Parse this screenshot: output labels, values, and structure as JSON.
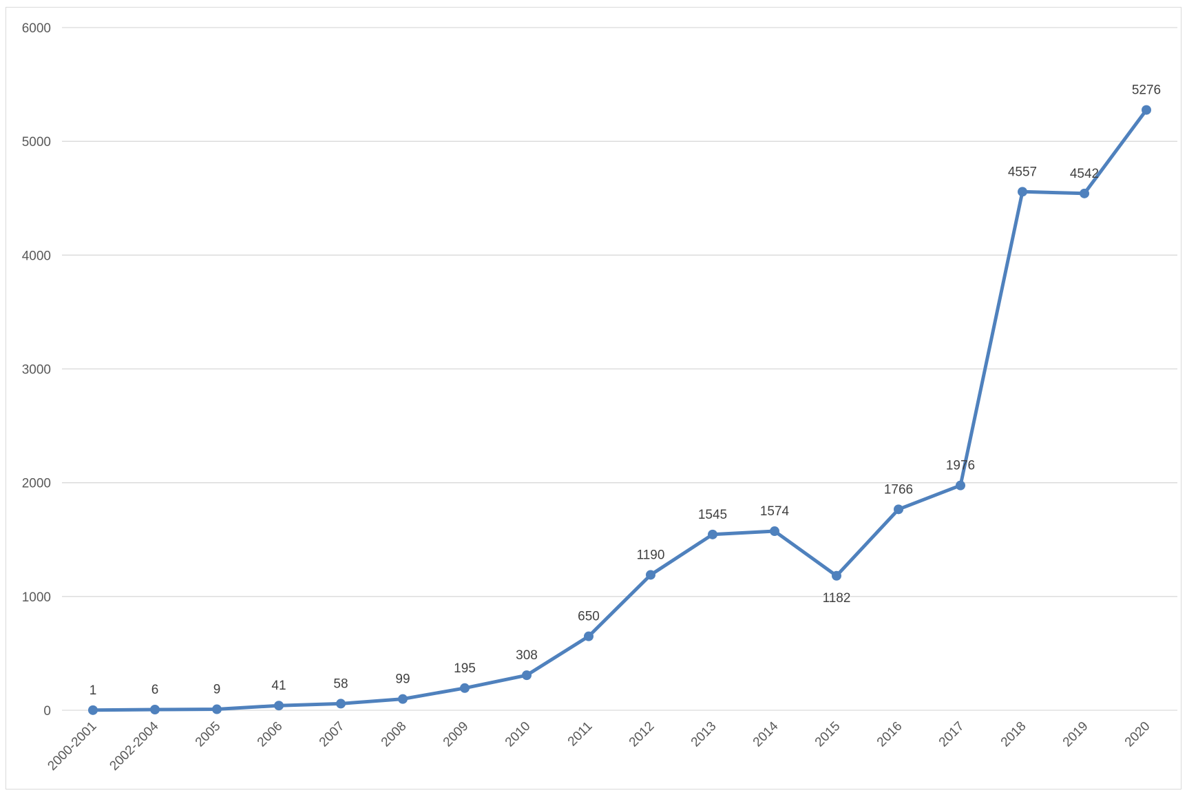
{
  "chart_data": {
    "type": "line",
    "title": "",
    "xlabel": "",
    "ylabel": "",
    "ylim": [
      0,
      6000
    ],
    "yticks": [
      0,
      1000,
      2000,
      3000,
      4000,
      5000,
      6000
    ],
    "grid": true,
    "legend": "none",
    "categories": [
      "2000-2001",
      "2002-2004",
      "2005",
      "2006",
      "2007",
      "2008",
      "2009",
      "2010",
      "2011",
      "2012",
      "2013",
      "2014",
      "2015",
      "2016",
      "2017",
      "2018",
      "2019",
      "2020"
    ],
    "series": [
      {
        "color": "#4f81bd",
        "values": [
          1,
          6,
          9,
          41,
          58,
          99,
          195,
          308,
          650,
          1190,
          1545,
          1574,
          1182,
          1766,
          1976,
          4557,
          4542,
          5276
        ]
      }
    ],
    "data_labels": [
      "1",
      "6",
      "9",
      "41",
      "58",
      "99",
      "195",
      "308",
      "650",
      "1190",
      "1545",
      "1574",
      "1182",
      "1766",
      "1976",
      "4557",
      "4542",
      "5276"
    ],
    "colors": {
      "line": "#4f81bd",
      "grid": "#d9d9d9",
      "axis_text": "#595959"
    }
  }
}
